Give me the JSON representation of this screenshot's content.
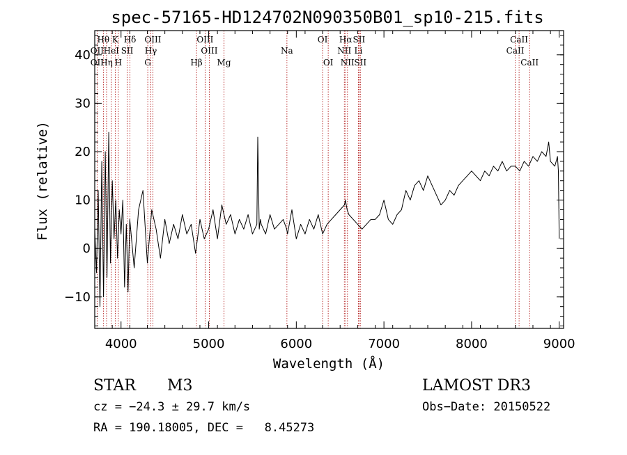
{
  "chart_data": {
    "type": "line",
    "title": "spec-57165-HD124702N090350B01_sp10-215.fits",
    "xlabel": "Wavelength (Å)",
    "ylabel": "Flux (relative)",
    "xlim": [
      3700,
      9050
    ],
    "ylim": [
      -16.5,
      45
    ],
    "xticks": [
      4000,
      5000,
      6000,
      7000,
      8000,
      9000
    ],
    "yticks": [
      -10,
      0,
      10,
      20,
      30,
      40
    ],
    "ytick_labels": [
      "−10",
      "0",
      "10",
      "20",
      "30",
      "40"
    ],
    "series": [
      {
        "name": "flux",
        "x": [
          3700,
          3720,
          3740,
          3760,
          3780,
          3800,
          3820,
          3840,
          3860,
          3880,
          3900,
          3920,
          3940,
          3960,
          3980,
          4000,
          4020,
          4040,
          4060,
          4080,
          4100,
          4150,
          4200,
          4250,
          4300,
          4350,
          4400,
          4450,
          4500,
          4550,
          4600,
          4650,
          4700,
          4750,
          4800,
          4850,
          4900,
          4950,
          5000,
          5050,
          5100,
          5150,
          5200,
          5250,
          5300,
          5350,
          5400,
          5450,
          5500,
          5550,
          5560,
          5577,
          5590,
          5600,
          5650,
          5700,
          5750,
          5800,
          5850,
          5890,
          5900,
          5950,
          6000,
          6050,
          6100,
          6150,
          6200,
          6250,
          6300,
          6350,
          6400,
          6450,
          6500,
          6550,
          6560,
          6580,
          6600,
          6650,
          6700,
          6750,
          6800,
          6850,
          6900,
          6950,
          7000,
          7050,
          7100,
          7150,
          7200,
          7250,
          7300,
          7350,
          7400,
          7450,
          7500,
          7550,
          7600,
          7650,
          7700,
          7750,
          7800,
          7850,
          7900,
          7950,
          8000,
          8050,
          8100,
          8150,
          8200,
          8250,
          8300,
          8350,
          8400,
          8450,
          8500,
          8550,
          8600,
          8650,
          8700,
          8750,
          8800,
          8850,
          8880,
          8900,
          8950,
          8980,
          8990,
          9000
        ],
        "y": [
          4,
          -5,
          12,
          -12,
          18,
          -10,
          20,
          -6,
          24,
          -3,
          14,
          2,
          10,
          -2,
          8,
          3,
          10,
          -8,
          5,
          -9,
          6,
          -4,
          8,
          12,
          -3,
          8,
          4,
          -2,
          6,
          1,
          5,
          2,
          7,
          3,
          5,
          -1,
          6,
          2,
          4,
          8,
          2,
          9,
          5,
          7,
          3,
          6,
          4,
          7,
          3,
          5,
          23,
          4,
          6,
          5,
          3,
          7,
          4,
          5,
          6,
          4,
          3,
          8,
          2,
          5,
          3,
          6,
          4,
          7,
          3,
          5,
          6,
          7,
          8,
          9,
          10,
          8,
          7,
          6,
          5,
          4,
          5,
          6,
          6,
          7,
          10,
          6,
          5,
          7,
          8,
          12,
          10,
          13,
          14,
          12,
          15,
          13,
          11,
          9,
          10,
          12,
          11,
          13,
          14,
          15,
          16,
          15,
          14,
          16,
          15,
          17,
          16,
          18,
          16,
          17,
          17,
          16,
          18,
          17,
          19,
          18,
          20,
          19,
          22,
          18,
          17,
          19,
          16,
          2
        ]
      }
    ],
    "line_markers": [
      {
        "label": "Hθ",
        "x": 3798,
        "row": 1
      },
      {
        "label": "OII",
        "x": 3727,
        "row": 2
      },
      {
        "label": "OII",
        "x": 3727,
        "row": 3
      },
      {
        "label": "Hη",
        "x": 3835,
        "row": 3
      },
      {
        "label": "K",
        "x": 3934,
        "row": 1
      },
      {
        "label": "HeI",
        "x": 3889,
        "row": 2
      },
      {
        "label": "SII",
        "x": 4070,
        "row": 2
      },
      {
        "label": "H",
        "x": 3969,
        "row": 3
      },
      {
        "label": "Hδ",
        "x": 4102,
        "row": 1
      },
      {
        "label": "OIII",
        "x": 4363,
        "row": 1
      },
      {
        "label": "Hγ",
        "x": 4340,
        "row": 2
      },
      {
        "label": "G",
        "x": 4305,
        "row": 3
      },
      {
        "label": "OIII",
        "x": 4959,
        "row": 1
      },
      {
        "label": "OIII",
        "x": 5007,
        "row": 2
      },
      {
        "label": "Hβ",
        "x": 4861,
        "row": 3
      },
      {
        "label": "Mg",
        "x": 5175,
        "row": 3
      },
      {
        "label": "Na",
        "x": 5893,
        "row": 2
      },
      {
        "label": "OI",
        "x": 6300,
        "row": 1
      },
      {
        "label": "OI",
        "x": 6364,
        "row": 3
      },
      {
        "label": "Hα",
        "x": 6563,
        "row": 1
      },
      {
        "label": "SII",
        "x": 6716,
        "row": 1
      },
      {
        "label": "NII",
        "x": 6548,
        "row": 2
      },
      {
        "label": "Li",
        "x": 6708,
        "row": 2
      },
      {
        "label": "NII",
        "x": 6584,
        "row": 3
      },
      {
        "label": "SII",
        "x": 6731,
        "row": 3
      },
      {
        "label": "CaII",
        "x": 8542,
        "row": 1
      },
      {
        "label": "CaII",
        "x": 8498,
        "row": 2
      },
      {
        "label": "CaII",
        "x": 8662,
        "row": 3
      }
    ],
    "grid": false,
    "legend": "none"
  },
  "info": {
    "object_class": "STAR",
    "subclass": "M3",
    "survey": "LAMOST DR3",
    "cz": "cz = −24.3 ± 29.7 km/s",
    "obs_date": "Obs−Date: 20150522",
    "coords": "RA = 190.18005, DEC =   8.45273"
  },
  "colors": {
    "spectrum": "#000000",
    "marker_line": "#aa0000",
    "axis": "#000000",
    "background": "#ffffff"
  }
}
